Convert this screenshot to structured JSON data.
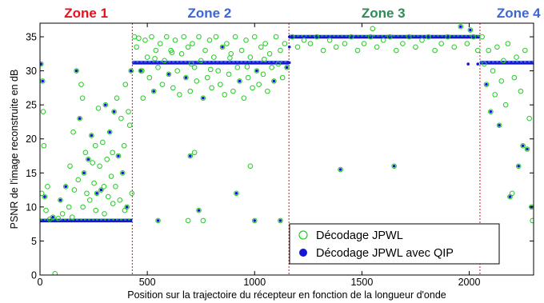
{
  "chart_data": {
    "type": "scatter",
    "title": "",
    "xlabel": "Position sur la trajectoire du récepteur en fonction de la longueur d'onde",
    "ylabel": "PSNR de l'image reconstruite en dB",
    "xlim": [
      0,
      2300
    ],
    "ylim": [
      0,
      37
    ],
    "xticks": [
      0,
      500,
      1000,
      1500,
      2000
    ],
    "yticks": [
      0,
      5,
      10,
      15,
      20,
      25,
      30,
      35
    ],
    "grid": false,
    "legend_position": "bottom-right",
    "zone_boundaries": [
      430,
      1160,
      2050
    ],
    "zones": [
      {
        "label": "Zone 1",
        "x_center": 215,
        "color": "#e8101a"
      },
      {
        "label": "Zone 2",
        "x_center": 790,
        "color": "#3a66d6"
      },
      {
        "label": "Zone 3",
        "x_center": 1600,
        "color": "#2e8b57"
      },
      {
        "label": "Zone 4",
        "x_center": 2230,
        "color": "#3a66d6"
      }
    ],
    "series": [
      {
        "name": "Décodage JPWL",
        "marker": "open-circle",
        "color": "#22cc22",
        "points": [
          [
            5,
            31
          ],
          [
            8,
            12
          ],
          [
            12,
            28.5
          ],
          [
            15,
            24
          ],
          [
            18,
            19
          ],
          [
            22,
            11.5
          ],
          [
            28,
            9.5
          ],
          [
            35,
            13
          ],
          [
            45,
            8.2
          ],
          [
            60,
            8.5
          ],
          [
            70,
            0.2
          ],
          [
            85,
            8.3
          ],
          [
            95,
            11
          ],
          [
            105,
            9
          ],
          [
            120,
            13
          ],
          [
            135,
            10
          ],
          [
            150,
            8.5
          ],
          [
            160,
            12.5
          ],
          [
            170,
            30
          ],
          [
            178,
            14
          ],
          [
            185,
            23
          ],
          [
            192,
            28
          ],
          [
            198,
            26
          ],
          [
            205,
            15
          ],
          [
            212,
            18
          ],
          [
            218,
            12
          ],
          [
            225,
            17
          ],
          [
            232,
            11
          ],
          [
            240,
            20.5
          ],
          [
            245,
            16.5
          ],
          [
            252,
            13.5
          ],
          [
            258,
            19
          ],
          [
            265,
            12
          ],
          [
            272,
            24.5
          ],
          [
            278,
            16
          ],
          [
            285,
            12.5
          ],
          [
            292,
            19.5
          ],
          [
            298,
            13
          ],
          [
            305,
            25
          ],
          [
            312,
            17
          ],
          [
            318,
            11.5
          ],
          [
            325,
            21
          ],
          [
            332,
            14.5
          ],
          [
            338,
            18
          ],
          [
            345,
            24
          ],
          [
            352,
            13
          ],
          [
            358,
            26
          ],
          [
            365,
            17.5
          ],
          [
            372,
            11
          ],
          [
            378,
            23
          ],
          [
            385,
            15
          ],
          [
            392,
            19
          ],
          [
            398,
            28
          ],
          [
            405,
            10
          ],
          [
            412,
            24
          ],
          [
            418,
            22
          ],
          [
            424,
            30
          ],
          [
            428,
            12
          ],
          [
            140,
            16
          ],
          [
            155,
            21
          ],
          [
            200,
            10
          ],
          [
            260,
            9.5
          ],
          [
            300,
            9
          ],
          [
            340,
            10.5
          ],
          [
            395,
            9.5
          ],
          [
            440,
            35
          ],
          [
            450,
            33.5
          ],
          [
            460,
            34.8
          ],
          [
            470,
            30
          ],
          [
            480,
            26
          ],
          [
            490,
            34.5
          ],
          [
            500,
            32
          ],
          [
            510,
            29
          ],
          [
            520,
            35
          ],
          [
            530,
            27
          ],
          [
            540,
            33
          ],
          [
            550,
            30.5
          ],
          [
            560,
            34
          ],
          [
            570,
            28
          ],
          [
            580,
            31.5
          ],
          [
            590,
            35
          ],
          [
            600,
            29.5
          ],
          [
            610,
            33
          ],
          [
            620,
            27.5
          ],
          [
            630,
            34.5
          ],
          [
            640,
            30
          ],
          [
            650,
            26.5
          ],
          [
            660,
            32.5
          ],
          [
            670,
            35
          ],
          [
            680,
            29
          ],
          [
            690,
            33.5
          ],
          [
            700,
            27
          ],
          [
            710,
            34
          ],
          [
            720,
            30.5
          ],
          [
            730,
            28.5
          ],
          [
            740,
            35
          ],
          [
            750,
            31.5
          ],
          [
            760,
            26
          ],
          [
            770,
            33
          ],
          [
            780,
            29
          ],
          [
            790,
            34.5
          ],
          [
            800,
            27.5
          ],
          [
            810,
            32
          ],
          [
            820,
            35
          ],
          [
            830,
            30
          ],
          [
            840,
            28
          ],
          [
            850,
            33.5
          ],
          [
            860,
            26.5
          ],
          [
            870,
            34
          ],
          [
            880,
            29.5
          ],
          [
            890,
            32.5
          ],
          [
            900,
            27
          ],
          [
            910,
            35
          ],
          [
            920,
            30.5
          ],
          [
            930,
            28.5
          ],
          [
            940,
            33
          ],
          [
            950,
            26
          ],
          [
            960,
            34.5
          ],
          [
            970,
            29
          ],
          [
            980,
            32
          ],
          [
            990,
            27.5
          ],
          [
            1000,
            35
          ],
          [
            1010,
            30
          ],
          [
            1020,
            28
          ],
          [
            1030,
            33.5
          ],
          [
            1040,
            29.5
          ],
          [
            1050,
            34
          ],
          [
            1060,
            27
          ],
          [
            1070,
            32.5
          ],
          [
            1080,
            30.5
          ],
          [
            1090,
            28.5
          ],
          [
            1100,
            35
          ],
          [
            1110,
            31
          ],
          [
            1120,
            33
          ],
          [
            1130,
            29
          ],
          [
            1140,
            34
          ],
          [
            1150,
            30.5
          ],
          [
            475,
            30
          ],
          [
            535,
            31.8
          ],
          [
            615,
            32.7
          ],
          [
            705,
            31
          ],
          [
            795,
            30.2
          ],
          [
            885,
            31.9
          ],
          [
            965,
            30.6
          ],
          [
            1045,
            31.7
          ],
          [
            550,
            8
          ],
          [
            690,
            8
          ],
          [
            700,
            17.5
          ],
          [
            720,
            18
          ],
          [
            740,
            9.5
          ],
          [
            760,
            8
          ],
          [
            915,
            12
          ],
          [
            980,
            16
          ],
          [
            1000,
            8
          ],
          [
            1120,
            8
          ],
          [
            1175,
            35
          ],
          [
            1200,
            33.5
          ],
          [
            1230,
            34.5
          ],
          [
            1260,
            34
          ],
          [
            1290,
            35
          ],
          [
            1320,
            33
          ],
          [
            1350,
            34.5
          ],
          [
            1380,
            33.5
          ],
          [
            1400,
            15.5
          ],
          [
            1420,
            34
          ],
          [
            1450,
            35
          ],
          [
            1480,
            33
          ],
          [
            1510,
            34
          ],
          [
            1540,
            35
          ],
          [
            1570,
            33.5
          ],
          [
            1600,
            34.5
          ],
          [
            1630,
            35
          ],
          [
            1650,
            16
          ],
          [
            1660,
            33
          ],
          [
            1690,
            34
          ],
          [
            1720,
            35
          ],
          [
            1750,
            33.5
          ],
          [
            1780,
            34.5
          ],
          [
            1810,
            35
          ],
          [
            1840,
            33
          ],
          [
            1870,
            34
          ],
          [
            1900,
            35
          ],
          [
            1930,
            33.5
          ],
          [
            1960,
            36.5
          ],
          [
            1990,
            34
          ],
          [
            2020,
            35
          ],
          [
            2040,
            33
          ],
          [
            2005,
            36
          ],
          [
            1550,
            36.2
          ],
          [
            2060,
            35
          ],
          [
            2070,
            31
          ],
          [
            2080,
            28
          ],
          [
            2090,
            33
          ],
          [
            2100,
            24
          ],
          [
            2110,
            30
          ],
          [
            2120,
            26.5
          ],
          [
            2130,
            33.5
          ],
          [
            2140,
            22
          ],
          [
            2150,
            28.5
          ],
          [
            2160,
            31.5
          ],
          [
            2170,
            25
          ],
          [
            2180,
            34
          ],
          [
            2190,
            11.5
          ],
          [
            2200,
            12
          ],
          [
            2210,
            29
          ],
          [
            2220,
            32
          ],
          [
            2230,
            16
          ],
          [
            2240,
            27
          ],
          [
            2250,
            19
          ],
          [
            2260,
            33
          ],
          [
            2270,
            18.5
          ],
          [
            2280,
            23
          ],
          [
            2290,
            10
          ],
          [
            2295,
            8
          ]
        ]
      },
      {
        "name": "Décodage JPWL avec QIP",
        "marker": "filled-dot",
        "color": "#1515d6",
        "points": [
          [
            5,
            31
          ],
          [
            12,
            28.5
          ],
          [
            22,
            11.5
          ],
          [
            60,
            8.5
          ],
          [
            95,
            11
          ],
          [
            120,
            13
          ],
          [
            170,
            30
          ],
          [
            185,
            23
          ],
          [
            205,
            15
          ],
          [
            225,
            17
          ],
          [
            240,
            20.5
          ],
          [
            265,
            12
          ],
          [
            285,
            12.5
          ],
          [
            305,
            25
          ],
          [
            325,
            21
          ],
          [
            345,
            24
          ],
          [
            365,
            17.5
          ],
          [
            385,
            15
          ],
          [
            405,
            10
          ],
          [
            424,
            30
          ],
          [
            470,
            30
          ],
          [
            530,
            27
          ],
          [
            600,
            29.5
          ],
          [
            680,
            29
          ],
          [
            760,
            26
          ],
          [
            850,
            33.5
          ],
          [
            930,
            28.5
          ],
          [
            1010,
            30
          ],
          [
            1090,
            28.5
          ],
          [
            1150,
            30.5
          ],
          [
            550,
            8
          ],
          [
            700,
            17.5
          ],
          [
            740,
            9.5
          ],
          [
            915,
            12
          ],
          [
            1000,
            8
          ],
          [
            1120,
            8
          ],
          [
            1400,
            15.5
          ],
          [
            1650,
            16
          ],
          [
            1960,
            36.5
          ],
          [
            2005,
            36
          ],
          [
            1995,
            31
          ],
          [
            2040,
            31
          ],
          [
            2080,
            28
          ],
          [
            2100,
            24
          ],
          [
            2140,
            22
          ],
          [
            2190,
            11.5
          ],
          [
            2230,
            16
          ],
          [
            2250,
            19
          ],
          [
            2270,
            18.5
          ],
          [
            2290,
            10
          ],
          [
            1162,
            31.2
          ],
          [
            1162,
            33.5
          ],
          [
            1162,
            35
          ]
        ],
        "plateaus": [
          {
            "x_start": 0,
            "x_end": 430,
            "y": 8
          },
          {
            "x_start": 430,
            "x_end": 1160,
            "y": 31.2
          },
          {
            "x_start": 1160,
            "x_end": 2050,
            "y": 35
          },
          {
            "x_start": 2050,
            "x_end": 2300,
            "y": 31.2
          }
        ]
      }
    ]
  }
}
